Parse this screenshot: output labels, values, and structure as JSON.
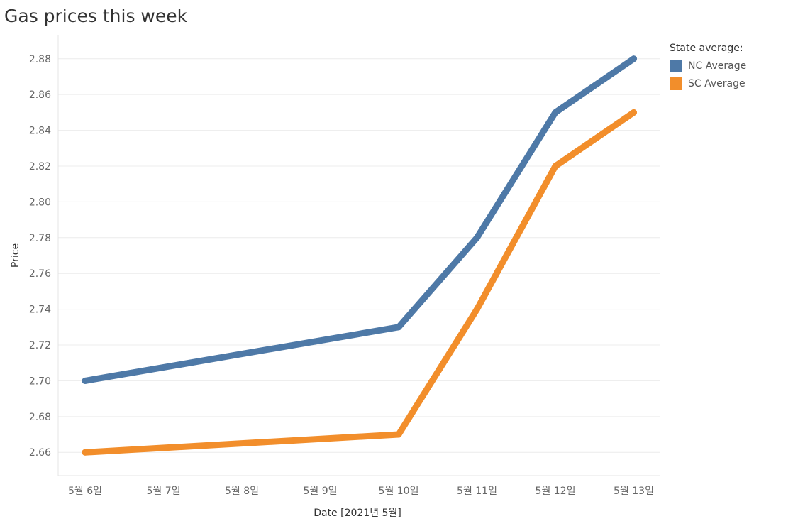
{
  "chart_data": {
    "type": "line",
    "title": "Gas prices this week",
    "xlabel": "Date [2021년 5월]",
    "ylabel": "Price",
    "categories": [
      "5월 6일",
      "5월 7일",
      "5월 8일",
      "5월 9일",
      "5월 10일",
      "5월 11일",
      "5월 12일",
      "5월 13일"
    ],
    "yticks": [
      "2.66",
      "2.68",
      "2.70",
      "2.72",
      "2.74",
      "2.76",
      "2.78",
      "2.80",
      "2.82",
      "2.84",
      "2.86",
      "2.88"
    ],
    "ylim": [
      2.647,
      2.893
    ],
    "grid": true,
    "legend_title": "State average:",
    "legend_position": "top-right",
    "series": [
      {
        "name": "NC Average",
        "color": "#4e79a7",
        "points": [
          {
            "x": "5월 6일",
            "y": 2.7
          },
          {
            "x": "5월 10일",
            "y": 2.73
          },
          {
            "x": "5월 11일",
            "y": 2.78
          },
          {
            "x": "5월 12일",
            "y": 2.85
          },
          {
            "x": "5월 13일",
            "y": 2.88
          }
        ]
      },
      {
        "name": "SC Average",
        "color": "#f28e2b",
        "points": [
          {
            "x": "5월 6일",
            "y": 2.66
          },
          {
            "x": "5월 10일",
            "y": 2.67
          },
          {
            "x": "5월 11일",
            "y": 2.74
          },
          {
            "x": "5월 12일",
            "y": 2.82
          },
          {
            "x": "5월 13일",
            "y": 2.85
          }
        ]
      }
    ]
  }
}
